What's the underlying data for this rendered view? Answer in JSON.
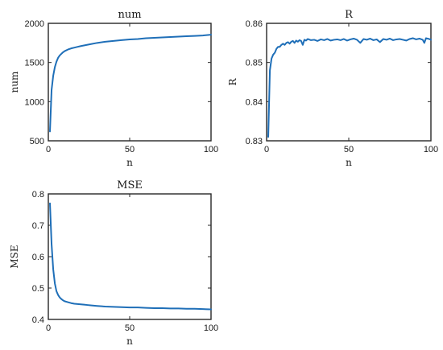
{
  "colors": {
    "line": "#1f6fb8",
    "axis": "#262626"
  },
  "chart_data": [
    {
      "type": "line",
      "title": "num",
      "xlabel": "n",
      "ylabel": "num",
      "xlim": [
        0,
        100
      ],
      "ylim": [
        500,
        2000
      ],
      "xticks": [
        0,
        50,
        100
      ],
      "yticks": [
        500,
        1000,
        1500,
        2000
      ],
      "grid": false,
      "series": [
        {
          "x": [
            1,
            2,
            3,
            4,
            5,
            6,
            7,
            8,
            9,
            10,
            12,
            14,
            16,
            18,
            20,
            25,
            30,
            35,
            40,
            45,
            50,
            55,
            60,
            65,
            70,
            75,
            80,
            85,
            90,
            95,
            100
          ],
          "values": [
            620,
            1150,
            1330,
            1440,
            1510,
            1560,
            1590,
            1610,
            1630,
            1645,
            1665,
            1680,
            1690,
            1700,
            1710,
            1730,
            1750,
            1765,
            1775,
            1785,
            1795,
            1800,
            1810,
            1815,
            1820,
            1825,
            1830,
            1835,
            1840,
            1845,
            1855
          ]
        }
      ]
    },
    {
      "type": "line",
      "title": "R",
      "xlabel": "n",
      "ylabel": "R",
      "xlim": [
        0,
        100
      ],
      "ylim": [
        0.83,
        0.86
      ],
      "xticks": [
        0,
        50,
        100
      ],
      "yticks": [
        0.83,
        0.84,
        0.85,
        0.86
      ],
      "grid": false,
      "series": [
        {
          "x": [
            1,
            2,
            3,
            4,
            5,
            6,
            7,
            8,
            9,
            10,
            11,
            12,
            13,
            14,
            15,
            16,
            17,
            18,
            19,
            20,
            21,
            22,
            23,
            24,
            25,
            27,
            29,
            31,
            33,
            35,
            37,
            39,
            41,
            43,
            45,
            47,
            49,
            51,
            53,
            55,
            57,
            59,
            61,
            63,
            65,
            67,
            69,
            71,
            73,
            75,
            77,
            79,
            81,
            83,
            85,
            87,
            89,
            91,
            93,
            95,
            96,
            97,
            99,
            100
          ],
          "values": [
            0.831,
            0.848,
            0.851,
            0.852,
            0.8525,
            0.8535,
            0.854,
            0.854,
            0.8545,
            0.8548,
            0.8545,
            0.855,
            0.8552,
            0.8548,
            0.8553,
            0.8555,
            0.855,
            0.8556,
            0.8553,
            0.8557,
            0.8555,
            0.8545,
            0.8558,
            0.8556,
            0.856,
            0.8557,
            0.8558,
            0.8555,
            0.8559,
            0.8557,
            0.856,
            0.8556,
            0.8558,
            0.8559,
            0.8557,
            0.856,
            0.8556,
            0.8559,
            0.8561,
            0.8558,
            0.855,
            0.856,
            0.8558,
            0.8561,
            0.8557,
            0.8559,
            0.8552,
            0.856,
            0.8558,
            0.8561,
            0.8557,
            0.8559,
            0.856,
            0.8558,
            0.8556,
            0.856,
            0.8562,
            0.8559,
            0.8561,
            0.8558,
            0.855,
            0.8562,
            0.856,
            0.8558
          ]
        }
      ]
    },
    {
      "type": "line",
      "title": "MSE",
      "xlabel": "n",
      "ylabel": "MSE",
      "xlim": [
        0,
        100
      ],
      "ylim": [
        0.4,
        0.8
      ],
      "xticks": [
        0,
        50,
        100
      ],
      "yticks": [
        0.4,
        0.5,
        0.6,
        0.7,
        0.8
      ],
      "grid": false,
      "series": [
        {
          "x": [
            1,
            2,
            3,
            4,
            5,
            6,
            7,
            8,
            9,
            10,
            12,
            14,
            16,
            18,
            20,
            22,
            24,
            26,
            28,
            30,
            35,
            40,
            45,
            50,
            55,
            60,
            65,
            70,
            75,
            80,
            85,
            90,
            95,
            100
          ],
          "values": [
            0.77,
            0.64,
            0.56,
            0.515,
            0.49,
            0.478,
            0.47,
            0.465,
            0.461,
            0.458,
            0.455,
            0.452,
            0.45,
            0.449,
            0.448,
            0.447,
            0.446,
            0.445,
            0.444,
            0.443,
            0.441,
            0.44,
            0.439,
            0.438,
            0.438,
            0.437,
            0.436,
            0.436,
            0.435,
            0.435,
            0.434,
            0.434,
            0.433,
            0.432
          ]
        }
      ]
    }
  ]
}
